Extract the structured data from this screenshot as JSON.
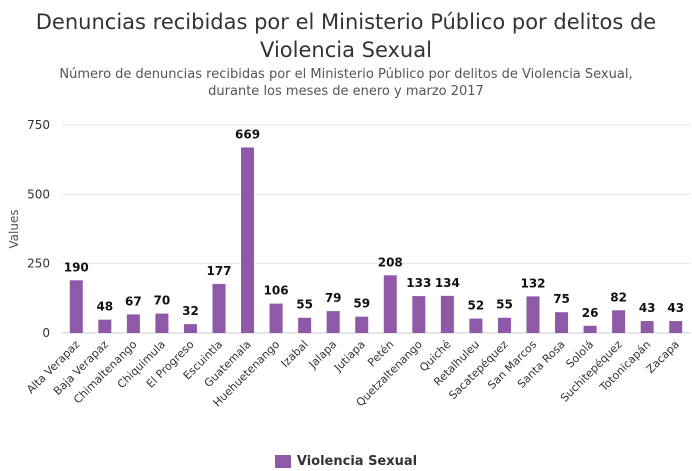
{
  "chart_data": {
    "type": "bar",
    "title": "Denuncias recibidas por el Ministerio Público por delitos de Violencia Sexual",
    "subtitle": "Número de denuncias recibidas por el Ministerio Público por delitos de Violencia Sexual, durante los meses de enero y marzo 2017",
    "ylabel": "Values",
    "xlabel": "",
    "ylim": [
      0,
      750
    ],
    "yticks": [
      0,
      250,
      500,
      750
    ],
    "grid": true,
    "legend_position": "bottom",
    "categories": [
      "Alta Verapaz",
      "Baja Verapaz",
      "Chimaltenango",
      "Chiquimula",
      "El Progreso",
      "Escuintla",
      "Guatemala",
      "Huehuetenango",
      "Izabal",
      "Jalapa",
      "Jutiapa",
      "Petén",
      "Quetzaltenango",
      "Quiché",
      "Retalhuleu",
      "Sacatepéquez",
      "San Marcos",
      "Santa Rosa",
      "Sololá",
      "Suchitepéquez",
      "Totonicapán",
      "Zacapa"
    ],
    "series": [
      {
        "name": "Violencia Sexual",
        "color": "#8e59a6",
        "values": [
          190,
          48,
          67,
          70,
          32,
          177,
          669,
          106,
          55,
          79,
          59,
          208,
          133,
          134,
          52,
          55,
          132,
          75,
          26,
          82,
          43,
          43
        ]
      }
    ]
  }
}
